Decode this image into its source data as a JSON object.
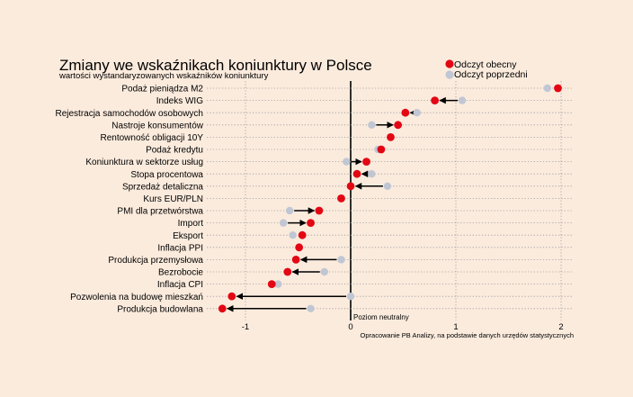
{
  "chart_data": {
    "type": "dumbbell",
    "title": "Zmiany we wskaźnikach koniunktury w Polsce",
    "subtitle": "wartości wystandaryzowanych wskaźników koniunktury",
    "source": "Opracowanie PB Analizy, na podstawie danych urzędów statystycznych",
    "zero_label": "Poziom neutralny",
    "xlim": [
      -1.4,
      2.1
    ],
    "x_ticks": [
      -1,
      0,
      1,
      2
    ],
    "x_tick_labels": [
      "-1",
      "0",
      "1",
      "2"
    ],
    "legend": {
      "position": "top-right",
      "current_label": "Odczyt obecny",
      "previous_label": "Odczyt poprzedni"
    },
    "colors": {
      "current": "#e30613",
      "previous": "#c0c6d3",
      "arrow": "#000000",
      "background": "#fbebdd",
      "grid": "#9a9a9a"
    },
    "categories": [
      "Podaż pieniądza M2",
      "Indeks WIG",
      "Rejestracja samochodów osobowych",
      "Nastroje konsumentów",
      "Rentowność obligacji 10Y",
      "Podaż kredytu",
      "Koniunktura w sektorze usług",
      "Stopa procentowa",
      "Sprzedaż detaliczna",
      "Kurs EUR/PLN",
      "PMI dla przetwórstwa",
      "Import",
      "Eksport",
      "Inflacja PPI",
      "Produkcja przemysłowa",
      "Bezrobocie",
      "Inflacja CPI",
      "Pozwolenia na budowę mieszkań",
      "Produkcja budowlana"
    ],
    "series": [
      {
        "name": "Odczyt obecny",
        "values": [
          1.97,
          0.8,
          0.52,
          0.45,
          0.38,
          0.29,
          0.15,
          0.06,
          0.0,
          -0.09,
          -0.3,
          -0.38,
          -0.46,
          -0.49,
          -0.52,
          -0.6,
          -0.75,
          -1.13,
          -1.22
        ]
      },
      {
        "name": "Odczyt poprzedni",
        "values": [
          1.87,
          1.06,
          0.63,
          0.2,
          0.38,
          0.26,
          -0.04,
          0.2,
          0.35,
          -0.09,
          -0.58,
          -0.64,
          -0.55,
          -0.49,
          -0.09,
          -0.25,
          -0.69,
          0.0,
          -0.38
        ]
      }
    ]
  }
}
